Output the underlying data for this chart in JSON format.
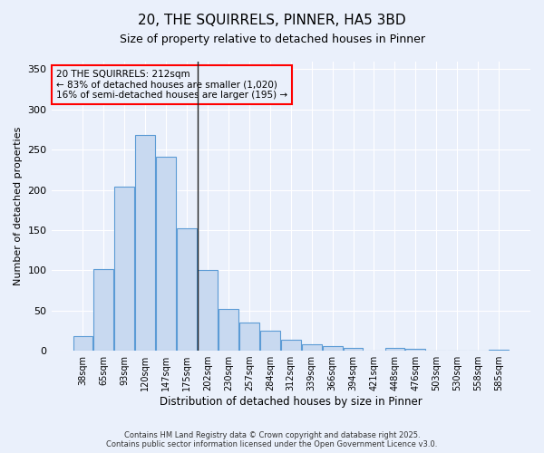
{
  "title": "20, THE SQUIRRELS, PINNER, HA5 3BD",
  "subtitle": "Size of property relative to detached houses in Pinner",
  "xlabel": "Distribution of detached houses by size in Pinner",
  "ylabel": "Number of detached properties",
  "bar_color": "#c8d9f0",
  "bar_edge_color": "#5b9bd5",
  "background_color": "#eaf0fb",
  "grid_color": "#ffffff",
  "categories": [
    "38sqm",
    "65sqm",
    "93sqm",
    "120sqm",
    "147sqm",
    "175sqm",
    "202sqm",
    "230sqm",
    "257sqm",
    "284sqm",
    "312sqm",
    "339sqm",
    "366sqm",
    "394sqm",
    "421sqm",
    "448sqm",
    "476sqm",
    "503sqm",
    "530sqm",
    "558sqm",
    "585sqm"
  ],
  "values": [
    18,
    102,
    204,
    268,
    241,
    152,
    100,
    52,
    35,
    25,
    14,
    8,
    6,
    4,
    0,
    4,
    2,
    0,
    0,
    0,
    1
  ],
  "ylim": [
    0,
    360
  ],
  "yticks": [
    0,
    50,
    100,
    150,
    200,
    250,
    300,
    350
  ],
  "annotation_text": "20 THE SQUIRRELS: 212sqm\n← 83% of detached houses are smaller (1,020)\n16% of semi-detached houses are larger (195) →",
  "vline_x_idx": 6,
  "footer_line1": "Contains HM Land Registry data © Crown copyright and database right 2025.",
  "footer_line2": "Contains public sector information licensed under the Open Government Licence v3.0."
}
